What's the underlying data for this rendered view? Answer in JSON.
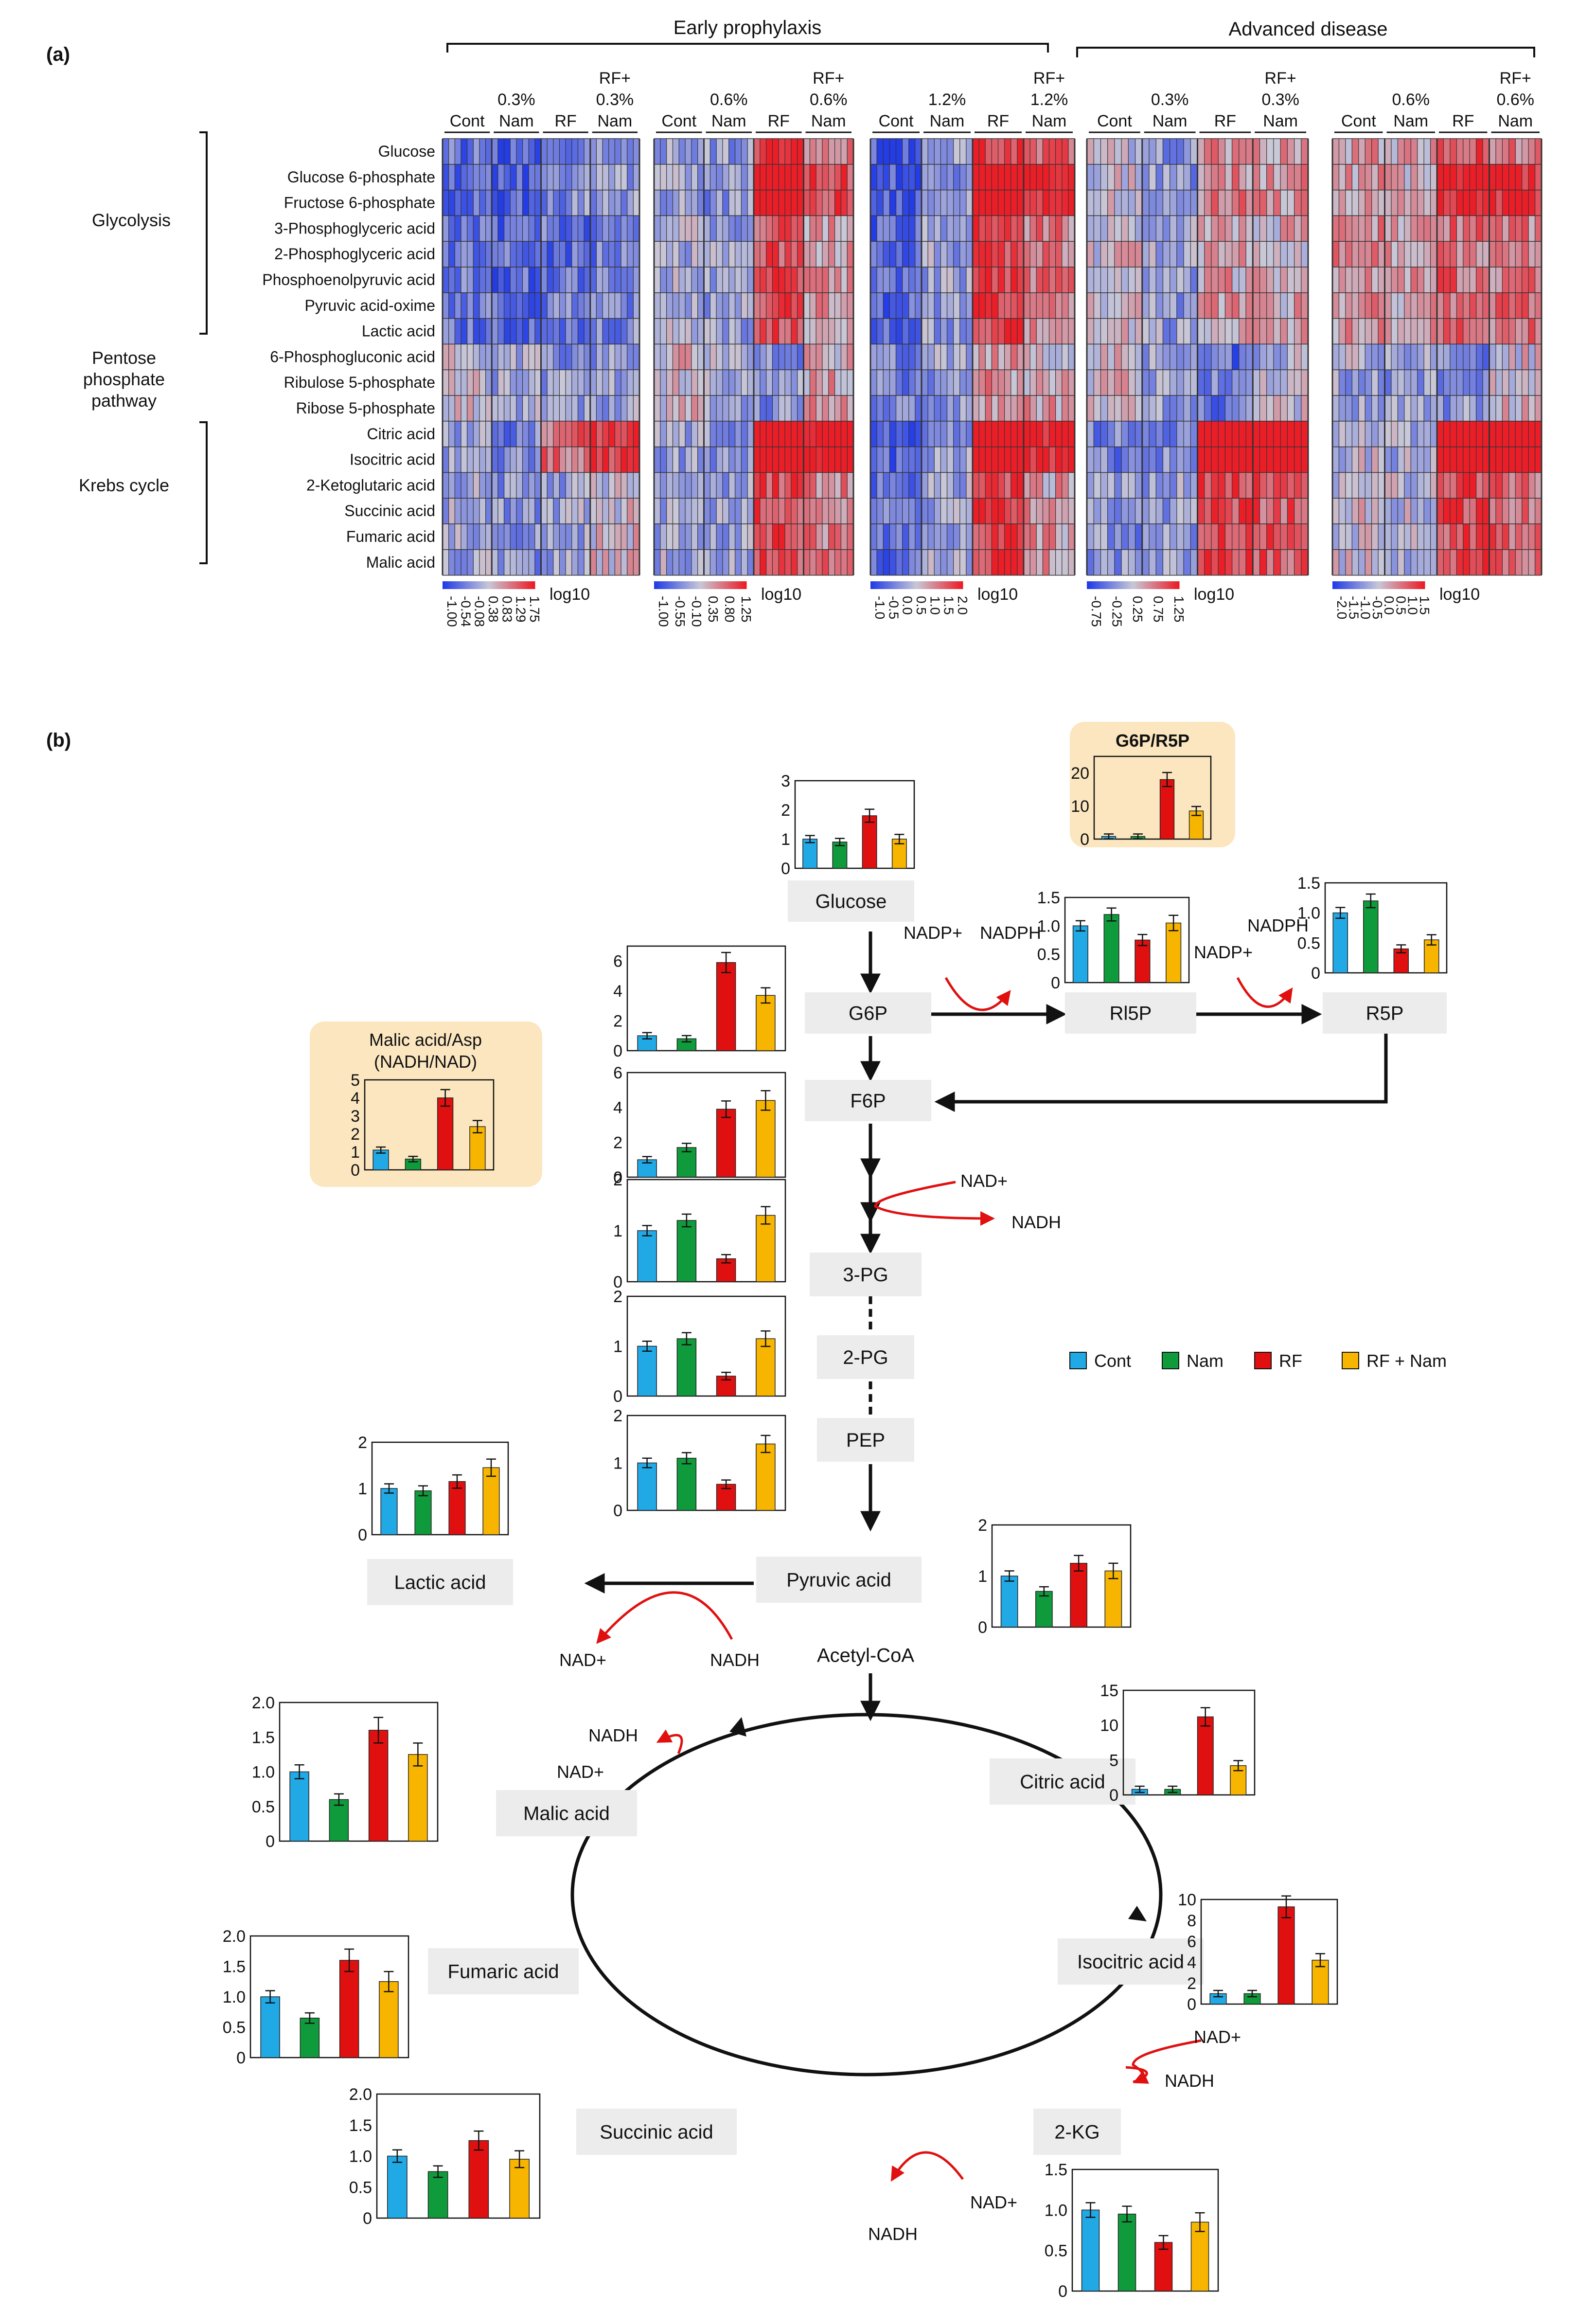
{
  "panel_a": {
    "label": "(a)",
    "top_groups": [
      "Early prophylaxis",
      "Advanced disease"
    ],
    "row_labels": [
      "Glucose",
      "Glucose 6-phosphate",
      "Fructose 6-phosphate",
      "3-Phosphoglyceric acid",
      "2-Phosphoglyceric acid",
      "Phosphoenolpyruvic acid",
      "Pyruvic acid-oxime",
      "Lactic acid",
      "6-Phosphogluconic acid",
      "Ribulose 5-phosphate",
      "Ribose 5-phosphate",
      "Citric acid",
      "Isocitric acid",
      "2-Ketoglutaric acid",
      "Succinic acid",
      "Fumaric acid",
      "Malic acid"
    ],
    "pathways": [
      "Glycolysis",
      "Pentose phosphate pathway",
      "Krebs cycle"
    ],
    "heatmaps": [
      {
        "col_labels": [
          "Cont",
          "0.3% Nam",
          "RF",
          "RF+ 0.3% Nam"
        ],
        "scale_ticks": [
          "-1.00",
          "-0.54",
          "-0.08",
          "0.38",
          "0.83",
          "1.29",
          "1.75"
        ],
        "scale_unit": "log10"
      },
      {
        "col_labels": [
          "Cont",
          "0.6% Nam",
          "RF",
          "RF+ 0.6% Nam"
        ],
        "scale_ticks": [
          "-1.00",
          "-0.55",
          "-0.10",
          "0.35",
          "0.80",
          "1.25"
        ],
        "scale_unit": "log10"
      },
      {
        "col_labels": [
          "Cont",
          "1.2% Nam",
          "RF",
          "RF+ 1.2% Nam"
        ],
        "scale_ticks": [
          "-1.0",
          "-0.5",
          "0.0",
          "0.5",
          "1.0",
          "1.5",
          "2.0"
        ],
        "scale_unit": "log10"
      },
      {
        "col_labels": [
          "Cont",
          "0.3% Nam",
          "RF",
          "RF+ 0.3% Nam"
        ],
        "scale_ticks": [
          "-0.75",
          "-0.25",
          "0.25",
          "0.75",
          "1.25"
        ],
        "scale_unit": "log10"
      },
      {
        "col_labels": [
          "Cont",
          "0.6% Nam",
          "RF",
          "RF+ 0.6% Nam"
        ],
        "scale_ticks": [
          "-2.0",
          "-1.5",
          "-1.0",
          "-0.5",
          "0.0",
          "0.5",
          "1.0",
          "1.5"
        ],
        "scale_unit": "log10"
      }
    ]
  },
  "panel_b": {
    "label": "(b)",
    "legend": [
      "Cont",
      "Nam",
      "RF",
      "RF + Nam"
    ],
    "colors": {
      "Cont": "#21a9e6",
      "Nam": "#0f9a3c",
      "RF": "#e01010",
      "RF + Nam": "#f7b500",
      "arrow_red": "#e01010",
      "node_bg": "#ececec",
      "ratio_bg": "#fbe6bf"
    },
    "nodes": [
      "Glucose",
      "G6P",
      "F6P",
      "3-PG",
      "2-PG",
      "PEP",
      "Pyruvic acid",
      "Acetyl-CoA",
      "Lactic acid",
      "Rl5P",
      "R5P",
      "Citric acid",
      "Isocitric acid",
      "2-KG",
      "Succinic acid",
      "Fumaric acid",
      "Malic acid"
    ],
    "cofactors": [
      "NADP+",
      "NADPH",
      "NADPH",
      "NADP+",
      "NAD+",
      "NADH",
      "NAD+",
      "NADH",
      "NADH",
      "NAD+",
      "NAD+",
      "NADH",
      "NAD+",
      "NADH"
    ],
    "ratio_titles": [
      "G6P/R5P",
      "Malic acid/Asp",
      "(NADH/NAD)"
    ]
  },
  "chart_data": [
    {
      "type": "bar",
      "title": "Glucose",
      "categories": [
        "Cont",
        "Nam",
        "RF",
        "RF + Nam"
      ],
      "values": [
        1.0,
        0.9,
        1.8,
        1.0
      ],
      "ylim": [
        0,
        3
      ],
      "ticks": [
        "0",
        "1",
        "2",
        "3"
      ]
    },
    {
      "type": "bar",
      "title": "G6P/R5P",
      "categories": [
        "Cont",
        "Nam",
        "RF",
        "RF + Nam"
      ],
      "values": [
        0.8,
        0.8,
        18,
        8.5
      ],
      "ylim": [
        0,
        25
      ],
      "ticks": [
        "0",
        "10",
        "20"
      ]
    },
    {
      "type": "bar",
      "title": "Rl5P",
      "categories": [
        "Cont",
        "Nam",
        "RF",
        "RF + Nam"
      ],
      "values": [
        1.0,
        1.2,
        0.75,
        1.05
      ],
      "ylim": [
        0,
        1.5
      ],
      "ticks": [
        "0",
        "0.5",
        "1.0",
        "1.5"
      ]
    },
    {
      "type": "bar",
      "title": "R5P",
      "categories": [
        "Cont",
        "Nam",
        "RF",
        "RF + Nam"
      ],
      "values": [
        1.0,
        1.2,
        0.4,
        0.55
      ],
      "ylim": [
        0,
        1.5
      ],
      "ticks": [
        "0",
        "0.5",
        "1.0",
        "1.5"
      ]
    },
    {
      "type": "bar",
      "title": "G6P",
      "categories": [
        "Cont",
        "Nam",
        "RF",
        "RF + Nam"
      ],
      "values": [
        1.0,
        0.8,
        5.9,
        3.7
      ],
      "ylim": [
        0,
        7
      ],
      "ticks": [
        "0",
        "2",
        "4",
        "6"
      ]
    },
    {
      "type": "bar",
      "title": "Malic acid/Asp (NADH/NAD)",
      "categories": [
        "Cont",
        "Nam",
        "RF",
        "RF + Nam"
      ],
      "values": [
        1.1,
        0.6,
        4.0,
        2.4
      ],
      "ylim": [
        0,
        5
      ],
      "ticks": [
        "0",
        "1",
        "2",
        "3",
        "4",
        "5"
      ]
    },
    {
      "type": "bar",
      "title": "F6P",
      "categories": [
        "Cont",
        "Nam",
        "RF",
        "RF + Nam"
      ],
      "values": [
        1.0,
        1.7,
        3.9,
        4.4
      ],
      "ylim": [
        0,
        6
      ],
      "ticks": [
        "0",
        "2",
        "4",
        "6"
      ]
    },
    {
      "type": "bar",
      "title": "3-PG",
      "categories": [
        "Cont",
        "Nam",
        "RF",
        "RF + Nam"
      ],
      "values": [
        1.0,
        1.2,
        0.45,
        1.3
      ],
      "ylim": [
        0,
        2
      ],
      "ticks": [
        "0",
        "1",
        "2"
      ]
    },
    {
      "type": "bar",
      "title": "2-PG",
      "categories": [
        "Cont",
        "Nam",
        "RF",
        "RF + Nam"
      ],
      "values": [
        1.0,
        1.15,
        0.4,
        1.15
      ],
      "ylim": [
        0,
        2
      ],
      "ticks": [
        "0",
        "1",
        "2"
      ]
    },
    {
      "type": "bar",
      "title": "PEP",
      "categories": [
        "Cont",
        "Nam",
        "RF",
        "RF + Nam"
      ],
      "values": [
        1.0,
        1.1,
        0.55,
        1.4
      ],
      "ylim": [
        0,
        2
      ],
      "ticks": [
        "0",
        "1",
        "2"
      ]
    },
    {
      "type": "bar",
      "title": "Lactic acid",
      "categories": [
        "Cont",
        "Nam",
        "RF",
        "RF + Nam"
      ],
      "values": [
        1.0,
        0.95,
        1.15,
        1.45
      ],
      "ylim": [
        0,
        2
      ],
      "ticks": [
        "0",
        "1",
        "2"
      ]
    },
    {
      "type": "bar",
      "title": "Pyruvic acid",
      "categories": [
        "Cont",
        "Nam",
        "RF",
        "RF + Nam"
      ],
      "values": [
        1.0,
        0.7,
        1.25,
        1.1
      ],
      "ylim": [
        0,
        2
      ],
      "ticks": [
        "0",
        "1",
        "2"
      ]
    },
    {
      "type": "bar",
      "title": "Malic acid",
      "categories": [
        "Cont",
        "Nam",
        "RF",
        "RF + Nam"
      ],
      "values": [
        1.0,
        0.6,
        1.6,
        1.25
      ],
      "ylim": [
        0,
        2.0
      ],
      "ticks": [
        "0",
        "0.5",
        "1.0",
        "1.5",
        "2.0"
      ]
    },
    {
      "type": "bar",
      "title": "Citric acid",
      "categories": [
        "Cont",
        "Nam",
        "RF",
        "RF + Nam"
      ],
      "values": [
        0.8,
        0.8,
        11.2,
        4.2
      ],
      "ylim": [
        0,
        15
      ],
      "ticks": [
        "0",
        "5",
        "10",
        "15"
      ]
    },
    {
      "type": "bar",
      "title": "Fumaric acid",
      "categories": [
        "Cont",
        "Nam",
        "RF",
        "RF + Nam"
      ],
      "values": [
        1.0,
        0.65,
        1.6,
        1.25
      ],
      "ylim": [
        0,
        2.0
      ],
      "ticks": [
        "0",
        "0.5",
        "1.0",
        "1.5",
        "2.0"
      ]
    },
    {
      "type": "bar",
      "title": "Isocitric acid",
      "categories": [
        "Cont",
        "Nam",
        "RF",
        "RF + Nam"
      ],
      "values": [
        1.0,
        1.0,
        9.3,
        4.2
      ],
      "ylim": [
        0,
        10
      ],
      "ticks": [
        "0",
        "2",
        "4",
        "6",
        "8",
        "10"
      ]
    },
    {
      "type": "bar",
      "title": "Succinic acid",
      "categories": [
        "Cont",
        "Nam",
        "RF",
        "RF + Nam"
      ],
      "values": [
        1.0,
        0.75,
        1.25,
        0.95
      ],
      "ylim": [
        0,
        2.0
      ],
      "ticks": [
        "0",
        "0.5",
        "1.0",
        "1.5",
        "2.0"
      ]
    },
    {
      "type": "bar",
      "title": "2-KG",
      "categories": [
        "Cont",
        "Nam",
        "RF",
        "RF + Nam"
      ],
      "values": [
        1.0,
        0.95,
        0.6,
        0.85
      ],
      "ylim": [
        0,
        1.5
      ],
      "ticks": [
        "0",
        "0.5",
        "1.0",
        "1.5"
      ]
    }
  ]
}
